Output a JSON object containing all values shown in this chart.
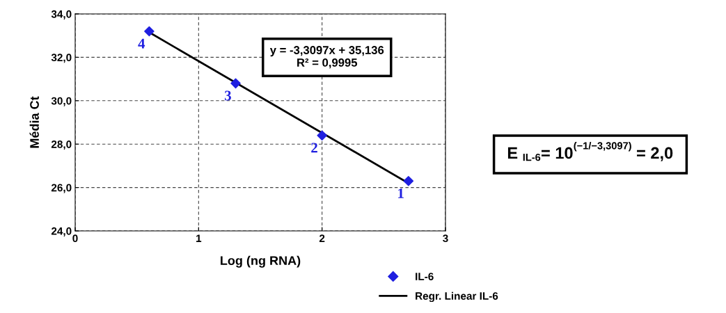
{
  "chart_data": {
    "type": "scatter",
    "xlabel": "Log (ng RNA)",
    "ylabel": "Média Ct",
    "x": [
      0.6,
      1.3,
      2.0,
      2.7
    ],
    "series": [
      {
        "name": "IL-6",
        "color": "#1f1fe0",
        "marker": "diamond",
        "values": [
          33.2,
          30.8,
          28.4,
          26.3
        ]
      },
      {
        "name": "Regr. Linear IL-6",
        "type": "line",
        "color": "#000000",
        "x": [
          0.6,
          2.7
        ],
        "values": [
          33.15,
          26.2
        ]
      }
    ],
    "annotations": [
      {
        "text": "4",
        "x": 0.6,
        "y": 33.2
      },
      {
        "text": "3",
        "x": 1.3,
        "y": 30.8
      },
      {
        "text": "2",
        "x": 2.0,
        "y": 28.4
      },
      {
        "text": "1",
        "x": 2.7,
        "y": 26.3
      },
      "y = -3,3097x + 35,136\nR² = 0,9995",
      "E $_{IL-6}$= 10$^{(−1/−3,3097)}$ = 2,0"
    ],
    "xlim": [
      0,
      3
    ],
    "xticks": [
      0,
      1,
      2,
      3
    ],
    "ylim": [
      24,
      34
    ],
    "yticks": [
      {
        "value": 24,
        "label": "24,0"
      },
      {
        "value": 26,
        "label": "26,0"
      },
      {
        "value": 28,
        "label": "28,0"
      },
      {
        "value": 30,
        "label": "30,0"
      },
      {
        "value": 32,
        "label": "32,0"
      },
      {
        "value": 34,
        "label": "34,0"
      }
    ],
    "grid": true,
    "legend": "bottom"
  }
}
